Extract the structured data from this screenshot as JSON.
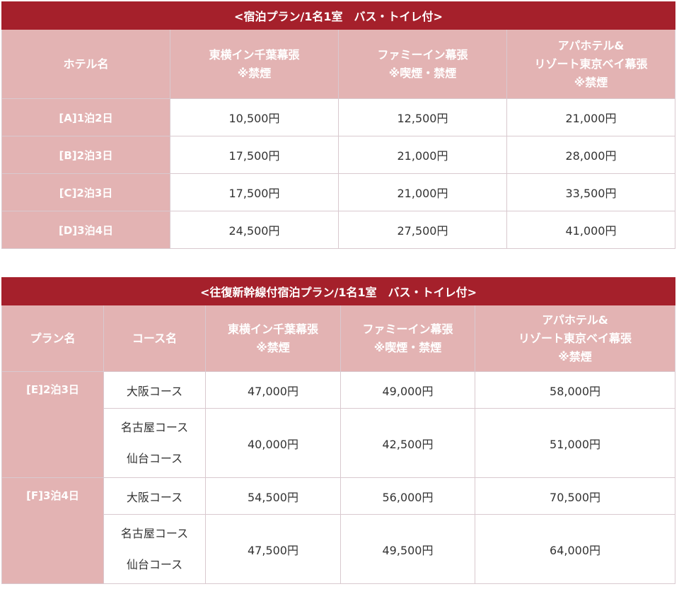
{
  "table1": {
    "title": "<宿泊プラン/1名1室　バス・トイレ付>",
    "header": {
      "col0": "ホテル名",
      "hotel1_line1": "東横イン千葉幕張",
      "hotel1_line2": "※禁煙",
      "hotel2_line1": "ファミーイン幕張",
      "hotel2_line2": "※喫煙・禁煙",
      "hotel3_line1": "アパホテル&",
      "hotel3_line2": "リゾート東京ベイ幕張",
      "hotel3_line3": "※禁煙"
    },
    "rows": [
      {
        "label": "[A]1泊2日",
        "v1": "10,500円",
        "v2": "12,500円",
        "v3": "21,000円"
      },
      {
        "label": "[B]2泊3日",
        "v1": "17,500円",
        "v2": "21,000円",
        "v3": "28,000円"
      },
      {
        "label": "[C]2泊3日",
        "v1": "17,500円",
        "v2": "21,000円",
        "v3": "33,500円"
      },
      {
        "label": "[D]3泊4日",
        "v1": "24,500円",
        "v2": "27,500円",
        "v3": "41,000円"
      }
    ]
  },
  "table2": {
    "title": "<往復新幹線付宿泊プラン/1名1室　バス・トイレ付>",
    "header": {
      "col0": "プラン名",
      "col1": "コース名",
      "hotel1_line1": "東横イン千葉幕張",
      "hotel1_line2": "※禁煙",
      "hotel2_line1": "ファミーイン幕張",
      "hotel2_line2": "※喫煙・禁煙",
      "hotel3_line1": "アパホテル&",
      "hotel3_line2": "リゾート東京ベイ幕張",
      "hotel3_line3": "※禁煙"
    },
    "plans": [
      {
        "label": "[E]2泊3日",
        "r1": {
          "course": "大阪コース",
          "v1": "47,000円",
          "v2": "49,000円",
          "v3": "58,000円"
        },
        "r2": {
          "course1": "名古屋コース",
          "course2": "仙台コース",
          "v1": "40,000円",
          "v2": "42,500円",
          "v3": "51,000円"
        }
      },
      {
        "label": "[F]3泊4日",
        "r1": {
          "course": "大阪コース",
          "v1": "54,500円",
          "v2": "56,000円",
          "v3": "70,500円"
        },
        "r2": {
          "course1": "名古屋コース",
          "course2": "仙台コース",
          "v1": "47,500円",
          "v2": "49,500円",
          "v3": "64,000円"
        }
      }
    ]
  }
}
